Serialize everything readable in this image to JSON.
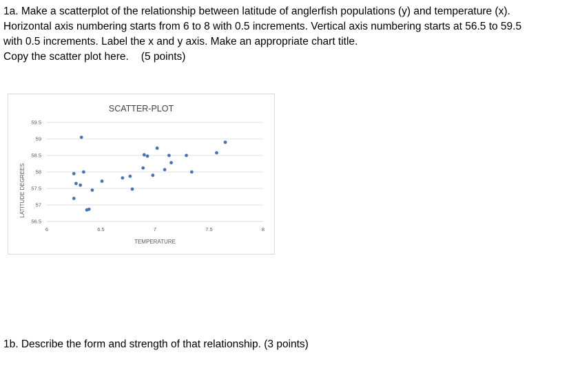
{
  "question_1a": {
    "lines": [
      "1a. Make a scatterplot of the relationship between latitude of anglerfish populations (y) and temperature (x).",
      "Horizontal axis numbering starts from 6 to 8 with 0.5 increments. Vertical axis numbering starts at 56.5 to 59.5",
      "with 0.5 increments. Label the x and y axis. Make an appropriate chart title."
    ],
    "instruction": "Copy the scatter plot here.",
    "points": "(5 points)"
  },
  "question_1b": {
    "text": "1b. Describe the form and strength of that relationship.  (3 points)"
  },
  "colors": {
    "marker": "#4472c4",
    "gridline": "#d9d9d9",
    "text_dark": "#404040",
    "text_axis": "#595959"
  },
  "chart_data": {
    "type": "scatter",
    "title": "SCATTER-PLOT",
    "xlabel": "TEMPERATURE",
    "ylabel": "LATITUDE DEGREES",
    "xlim": [
      6,
      8
    ],
    "ylim": [
      56.5,
      59.5
    ],
    "x_ticks": [
      "6",
      "6.5",
      "7",
      "7.5",
      "8"
    ],
    "y_ticks": [
      "56.5",
      "57",
      "57.5",
      "58",
      "58.5",
      "59",
      "59.5"
    ],
    "grid": "horizontal",
    "legend": "none",
    "points": [
      {
        "x": 6.32,
        "y": 59.05
      },
      {
        "x": 6.25,
        "y": 57.95
      },
      {
        "x": 6.34,
        "y": 58.0
      },
      {
        "x": 6.27,
        "y": 57.65
      },
      {
        "x": 6.31,
        "y": 57.6
      },
      {
        "x": 6.25,
        "y": 57.2
      },
      {
        "x": 6.37,
        "y": 56.85
      },
      {
        "x": 6.39,
        "y": 56.87
      },
      {
        "x": 6.42,
        "y": 57.45
      },
      {
        "x": 6.51,
        "y": 57.72
      },
      {
        "x": 6.7,
        "y": 57.82
      },
      {
        "x": 6.77,
        "y": 57.87
      },
      {
        "x": 6.79,
        "y": 57.48
      },
      {
        "x": 6.89,
        "y": 58.12
      },
      {
        "x": 6.9,
        "y": 58.52
      },
      {
        "x": 6.93,
        "y": 58.48
      },
      {
        "x": 6.98,
        "y": 57.9
      },
      {
        "x": 7.02,
        "y": 58.72
      },
      {
        "x": 7.09,
        "y": 58.07
      },
      {
        "x": 7.13,
        "y": 58.5
      },
      {
        "x": 7.15,
        "y": 58.28
      },
      {
        "x": 7.29,
        "y": 58.5
      },
      {
        "x": 7.34,
        "y": 58.0
      },
      {
        "x": 7.57,
        "y": 58.58
      },
      {
        "x": 7.65,
        "y": 58.9
      }
    ]
  }
}
